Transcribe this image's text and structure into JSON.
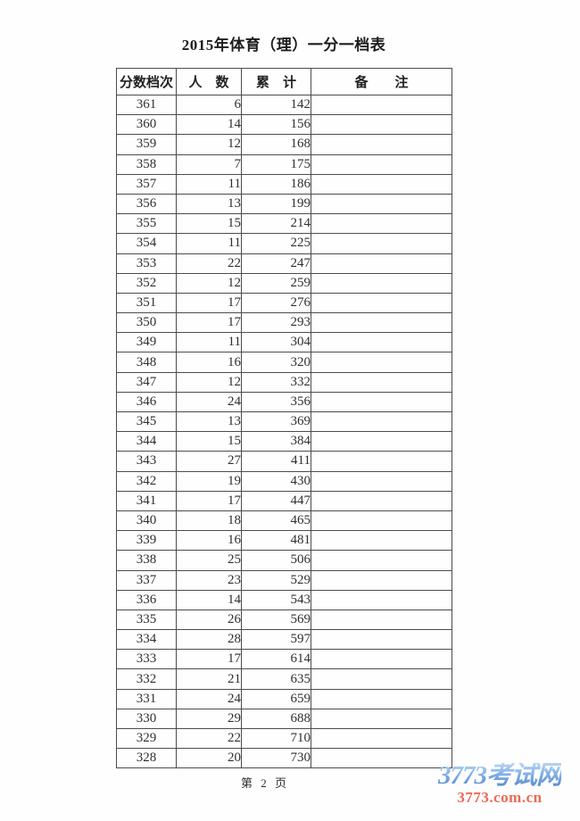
{
  "title": "2015年体育（理）一分一档表",
  "table": {
    "headers": [
      "分数档次",
      "人　数",
      "累　计",
      "备　　注"
    ],
    "rows": [
      {
        "score": "361",
        "count": "6",
        "cumulative": "142",
        "remark": ""
      },
      {
        "score": "360",
        "count": "14",
        "cumulative": "156",
        "remark": ""
      },
      {
        "score": "359",
        "count": "12",
        "cumulative": "168",
        "remark": ""
      },
      {
        "score": "358",
        "count": "7",
        "cumulative": "175",
        "remark": ""
      },
      {
        "score": "357",
        "count": "11",
        "cumulative": "186",
        "remark": ""
      },
      {
        "score": "356",
        "count": "13",
        "cumulative": "199",
        "remark": ""
      },
      {
        "score": "355",
        "count": "15",
        "cumulative": "214",
        "remark": ""
      },
      {
        "score": "354",
        "count": "11",
        "cumulative": "225",
        "remark": ""
      },
      {
        "score": "353",
        "count": "22",
        "cumulative": "247",
        "remark": ""
      },
      {
        "score": "352",
        "count": "12",
        "cumulative": "259",
        "remark": ""
      },
      {
        "score": "351",
        "count": "17",
        "cumulative": "276",
        "remark": ""
      },
      {
        "score": "350",
        "count": "17",
        "cumulative": "293",
        "remark": ""
      },
      {
        "score": "349",
        "count": "11",
        "cumulative": "304",
        "remark": ""
      },
      {
        "score": "348",
        "count": "16",
        "cumulative": "320",
        "remark": ""
      },
      {
        "score": "347",
        "count": "12",
        "cumulative": "332",
        "remark": ""
      },
      {
        "score": "346",
        "count": "24",
        "cumulative": "356",
        "remark": ""
      },
      {
        "score": "345",
        "count": "13",
        "cumulative": "369",
        "remark": ""
      },
      {
        "score": "344",
        "count": "15",
        "cumulative": "384",
        "remark": ""
      },
      {
        "score": "343",
        "count": "27",
        "cumulative": "411",
        "remark": ""
      },
      {
        "score": "342",
        "count": "19",
        "cumulative": "430",
        "remark": ""
      },
      {
        "score": "341",
        "count": "17",
        "cumulative": "447",
        "remark": ""
      },
      {
        "score": "340",
        "count": "18",
        "cumulative": "465",
        "remark": ""
      },
      {
        "score": "339",
        "count": "16",
        "cumulative": "481",
        "remark": ""
      },
      {
        "score": "338",
        "count": "25",
        "cumulative": "506",
        "remark": ""
      },
      {
        "score": "337",
        "count": "23",
        "cumulative": "529",
        "remark": ""
      },
      {
        "score": "336",
        "count": "14",
        "cumulative": "543",
        "remark": ""
      },
      {
        "score": "335",
        "count": "26",
        "cumulative": "569",
        "remark": ""
      },
      {
        "score": "334",
        "count": "28",
        "cumulative": "597",
        "remark": ""
      },
      {
        "score": "333",
        "count": "17",
        "cumulative": "614",
        "remark": ""
      },
      {
        "score": "332",
        "count": "21",
        "cumulative": "635",
        "remark": ""
      },
      {
        "score": "331",
        "count": "24",
        "cumulative": "659",
        "remark": ""
      },
      {
        "score": "330",
        "count": "29",
        "cumulative": "688",
        "remark": ""
      },
      {
        "score": "329",
        "count": "22",
        "cumulative": "710",
        "remark": ""
      },
      {
        "score": "328",
        "count": "20",
        "cumulative": "730",
        "remark": ""
      }
    ]
  },
  "footer": {
    "page_label": "第 2 页"
  },
  "watermark": {
    "site_name": "3773考试网",
    "site_url": "3773.com.cn",
    "name_gradient_top": "#b7d6f3",
    "name_gradient_bottom": "#5388cd",
    "url_color": "#ea6a55"
  }
}
